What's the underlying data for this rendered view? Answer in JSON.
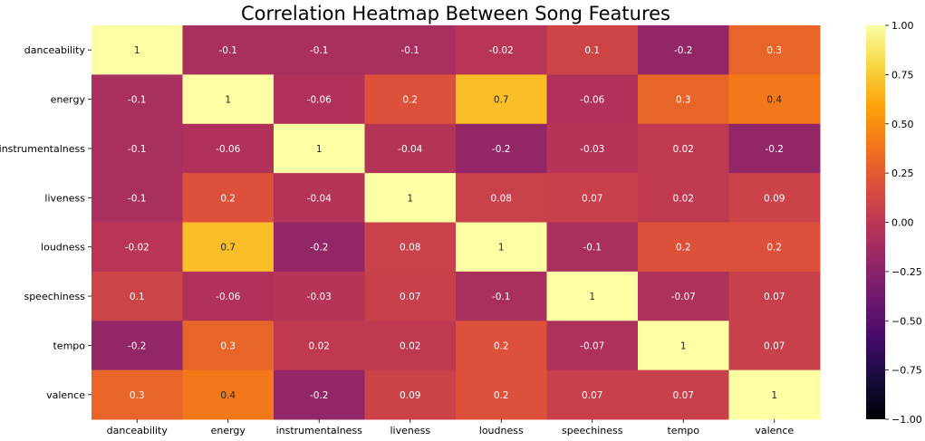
{
  "chart_data": {
    "type": "heatmap",
    "title": "Correlation Heatmap Between Song Features",
    "rows": [
      "danceability",
      "energy",
      "instrumentalness",
      "liveness",
      "loudness",
      "speechiness",
      "tempo",
      "valence"
    ],
    "columns": [
      "danceability",
      "energy",
      "instrumentalness",
      "liveness",
      "loudness",
      "speechiness",
      "tempo",
      "valence"
    ],
    "values": [
      [
        1,
        -0.1,
        -0.1,
        -0.1,
        -0.02,
        0.1,
        -0.2,
        0.3
      ],
      [
        -0.1,
        1,
        -0.06,
        0.2,
        0.7,
        -0.06,
        0.3,
        0.4
      ],
      [
        -0.1,
        -0.06,
        1,
        -0.04,
        -0.2,
        -0.03,
        0.02,
        -0.2
      ],
      [
        -0.1,
        0.2,
        -0.04,
        1,
        0.08,
        0.07,
        0.02,
        0.09
      ],
      [
        -0.02,
        0.7,
        -0.2,
        0.08,
        1,
        -0.1,
        0.2,
        0.2
      ],
      [
        0.1,
        -0.06,
        -0.03,
        0.07,
        -0.1,
        1,
        -0.07,
        0.07
      ],
      [
        -0.2,
        0.3,
        0.02,
        0.02,
        0.2,
        -0.07,
        1,
        0.07
      ],
      [
        0.3,
        0.4,
        -0.2,
        0.09,
        0.2,
        0.07,
        0.07,
        1
      ]
    ],
    "labels": [
      [
        "1",
        "-0.1",
        "-0.1",
        "-0.1",
        "-0.02",
        "0.1",
        "-0.2",
        "0.3"
      ],
      [
        "-0.1",
        "1",
        "-0.06",
        "0.2",
        "0.7",
        "-0.06",
        "0.3",
        "0.4"
      ],
      [
        "-0.1",
        "-0.06",
        "1",
        "-0.04",
        "-0.2",
        "-0.03",
        "0.02",
        "-0.2"
      ],
      [
        "-0.1",
        "0.2",
        "-0.04",
        "1",
        "0.08",
        "0.07",
        "0.02",
        "0.09"
      ],
      [
        "-0.02",
        "0.7",
        "-0.2",
        "0.08",
        "1",
        "-0.1",
        "0.2",
        "0.2"
      ],
      [
        "0.1",
        "-0.06",
        "-0.03",
        "0.07",
        "-0.1",
        "1",
        "-0.07",
        "0.07"
      ],
      [
        "-0.2",
        "0.3",
        "0.02",
        "0.02",
        "0.2",
        "-0.07",
        "1",
        "0.07"
      ],
      [
        "0.3",
        "0.4",
        "-0.2",
        "0.09",
        "0.2",
        "0.07",
        "0.07",
        "1"
      ]
    ],
    "colorscale": "inferno",
    "vmin": -1.0,
    "vmax": 1.0,
    "colorbar_ticks": [
      "−1.00",
      "−0.75",
      "−0.50",
      "−0.25",
      "0.00",
      "0.25",
      "0.50",
      "0.75",
      "1.00"
    ],
    "colorbar_tick_values": [
      -1.0,
      -0.75,
      -0.5,
      -0.25,
      0.0,
      0.25,
      0.5,
      0.75,
      1.0
    ]
  }
}
